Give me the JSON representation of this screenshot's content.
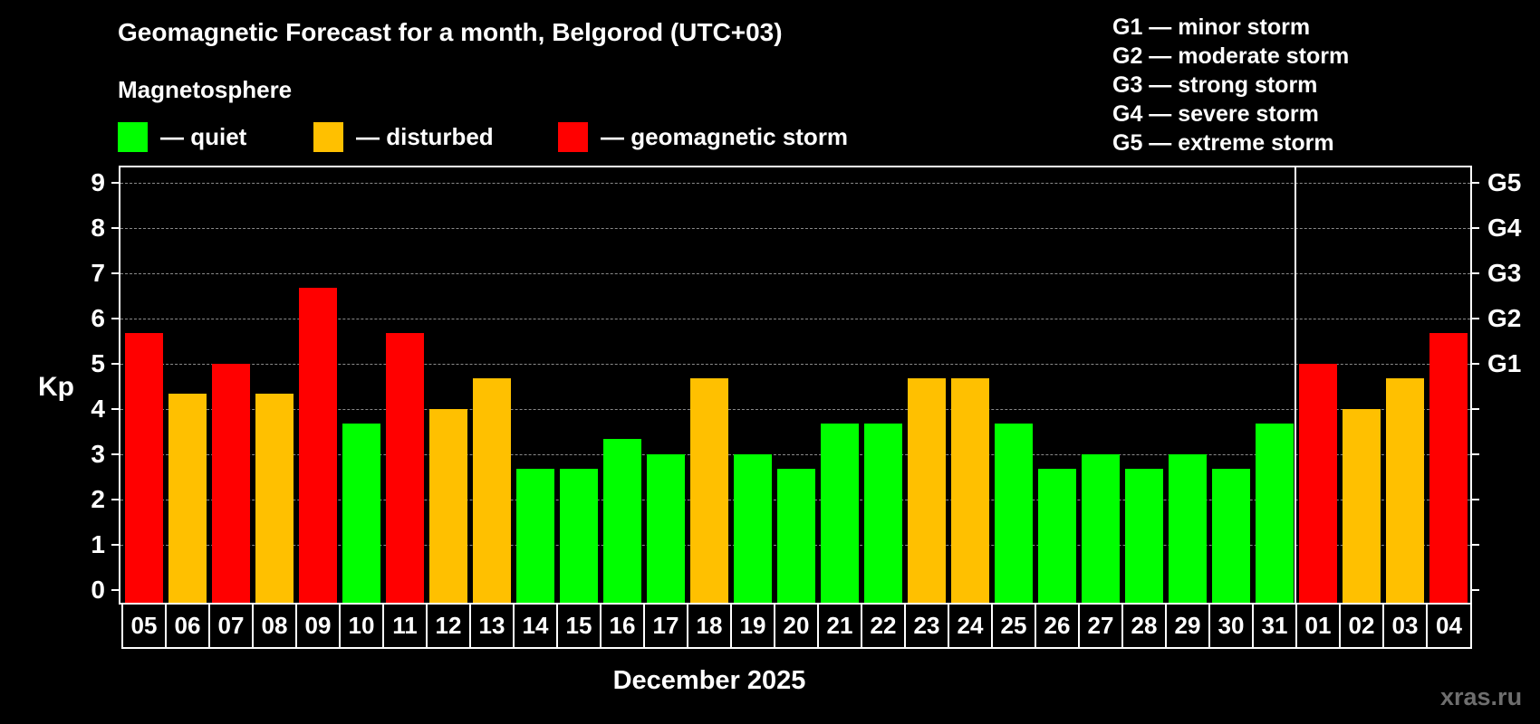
{
  "header": {
    "title": "Geomagnetic Forecast for a month, Belgorod (UTC+03)",
    "subtitle": "Magnetosphere"
  },
  "legend": [
    {
      "label": "— quiet",
      "color": "#00ff00"
    },
    {
      "label": "— disturbed",
      "color": "#ffc000"
    },
    {
      "label": "— geomagnetic storm",
      "color": "#ff0000"
    }
  ],
  "storm_scale": [
    "G1 — minor storm",
    "G2 — moderate storm",
    "G3 — strong storm",
    "G4 — severe storm",
    "G5 — extreme storm"
  ],
  "axis": {
    "ylabel": "Kp",
    "xlabel": "December 2025",
    "yticks": [
      "0",
      "1",
      "2",
      "3",
      "4",
      "5",
      "6",
      "7",
      "8",
      "9"
    ],
    "right_ticks": [
      {
        "k": 5,
        "label": "G1"
      },
      {
        "k": 6,
        "label": "G2"
      },
      {
        "k": 7,
        "label": "G3"
      },
      {
        "k": 8,
        "label": "G4"
      },
      {
        "k": 9,
        "label": "G5"
      }
    ]
  },
  "watermark": "xras.ru",
  "chart_data": {
    "type": "bar",
    "title": "Geomagnetic Forecast for a month, Belgorod (UTC+03)",
    "xlabel": "December 2025",
    "ylabel": "Kp",
    "ylim": [
      0,
      9
    ],
    "grid": true,
    "legend_position": "top",
    "categories": [
      "05",
      "06",
      "07",
      "08",
      "09",
      "10",
      "11",
      "12",
      "13",
      "14",
      "15",
      "16",
      "17",
      "18",
      "19",
      "20",
      "21",
      "22",
      "23",
      "24",
      "25",
      "26",
      "27",
      "28",
      "29",
      "30",
      "31",
      "01",
      "02",
      "03",
      "04"
    ],
    "values": [
      5.67,
      4.33,
      5.0,
      4.33,
      6.67,
      3.67,
      5.67,
      4.0,
      4.67,
      2.67,
      2.67,
      3.33,
      3.0,
      4.67,
      3.0,
      2.67,
      3.67,
      3.67,
      4.67,
      4.67,
      3.67,
      2.67,
      3.0,
      2.67,
      3.0,
      2.67,
      3.67,
      5.0,
      4.0,
      4.67,
      5.67
    ],
    "status": [
      "storm",
      "disturbed",
      "storm",
      "disturbed",
      "storm",
      "quiet",
      "storm",
      "disturbed",
      "disturbed",
      "quiet",
      "quiet",
      "quiet",
      "quiet",
      "disturbed",
      "quiet",
      "quiet",
      "quiet",
      "quiet",
      "disturbed",
      "disturbed",
      "quiet",
      "quiet",
      "quiet",
      "quiet",
      "quiet",
      "quiet",
      "quiet",
      "storm",
      "disturbed",
      "disturbed",
      "storm"
    ],
    "status_colors": {
      "quiet": "#00ff00",
      "disturbed": "#ffc000",
      "storm": "#ff0000"
    },
    "secondary_axis": {
      "5": "G1",
      "6": "G2",
      "7": "G3",
      "8": "G4",
      "9": "G5"
    },
    "month_separator_after": "31"
  }
}
